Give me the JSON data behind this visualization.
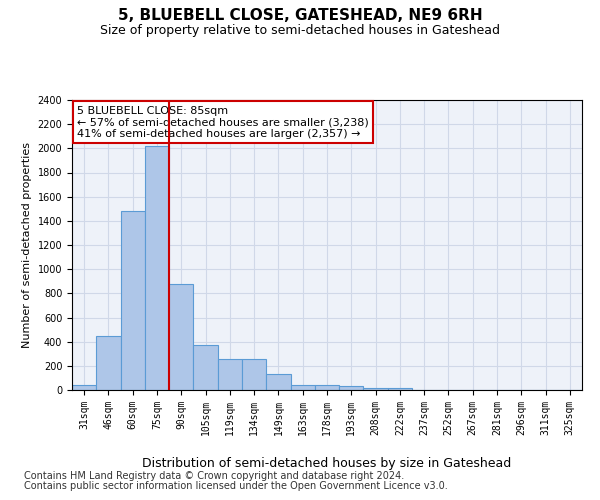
{
  "title": "5, BLUEBELL CLOSE, GATESHEAD, NE9 6RH",
  "subtitle": "Size of property relative to semi-detached houses in Gateshead",
  "xlabel": "Distribution of semi-detached houses by size in Gateshead",
  "ylabel": "Number of semi-detached properties",
  "categories": [
    "31sqm",
    "46sqm",
    "60sqm",
    "75sqm",
    "90sqm",
    "105sqm",
    "119sqm",
    "134sqm",
    "149sqm",
    "163sqm",
    "178sqm",
    "193sqm",
    "208sqm",
    "222sqm",
    "237sqm",
    "252sqm",
    "267sqm",
    "281sqm",
    "296sqm",
    "311sqm",
    "325sqm"
  ],
  "values": [
    45,
    445,
    1480,
    2020,
    880,
    375,
    260,
    260,
    135,
    40,
    40,
    30,
    20,
    20,
    0,
    0,
    0,
    0,
    0,
    0,
    0
  ],
  "bar_color": "#aec6e8",
  "bar_edge_color": "#5b9bd5",
  "grid_color": "#d0d8e8",
  "bg_color": "#eef2f9",
  "annotation_box_color": "#ffffff",
  "annotation_box_edge_color": "#cc0000",
  "annotation_text": "5 BLUEBELL CLOSE: 85sqm\n← 57% of semi-detached houses are smaller (3,238)\n41% of semi-detached houses are larger (2,357) →",
  "property_line_color": "#cc0000",
  "property_line_x": 3.5,
  "ylim": [
    0,
    2400
  ],
  "yticks": [
    0,
    200,
    400,
    600,
    800,
    1000,
    1200,
    1400,
    1600,
    1800,
    2000,
    2200,
    2400
  ],
  "footnote1": "Contains HM Land Registry data © Crown copyright and database right 2024.",
  "footnote2": "Contains public sector information licensed under the Open Government Licence v3.0.",
  "title_fontsize": 11,
  "subtitle_fontsize": 9,
  "xlabel_fontsize": 9,
  "ylabel_fontsize": 8,
  "tick_fontsize": 7,
  "annotation_fontsize": 8,
  "footnote_fontsize": 7
}
